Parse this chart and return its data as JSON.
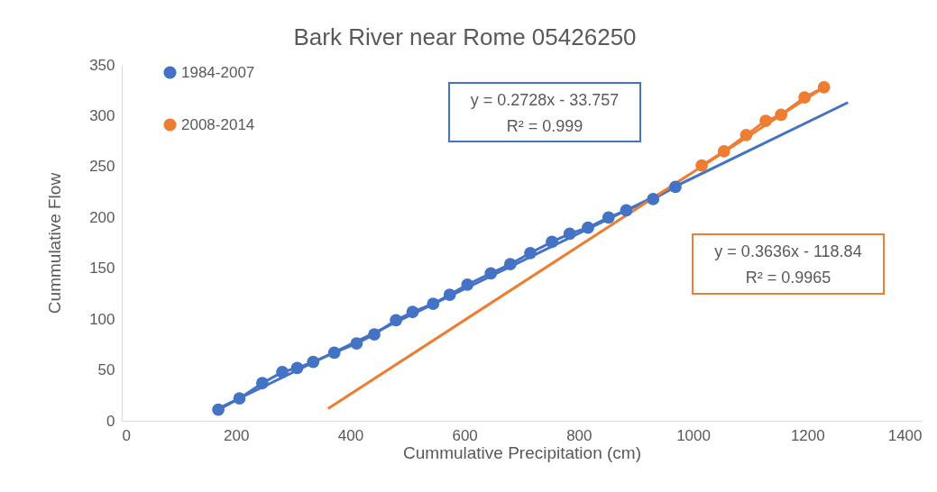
{
  "chart_data": {
    "type": "line",
    "title": "Bark River near Rome 05426250",
    "xlabel": "Cummulative Precipitation (cm)",
    "ylabel": "Cummulative Flow",
    "xlim": [
      0,
      1400
    ],
    "xticks": [
      0,
      200,
      400,
      600,
      800,
      1000,
      1200,
      1400
    ],
    "ylim": [
      0,
      350
    ],
    "yticks": [
      0,
      50,
      100,
      150,
      200,
      250,
      300,
      350
    ],
    "grid": false,
    "legend": "top left",
    "marker": "circle",
    "line_style": "solid",
    "series": [
      {
        "name": "1984-2007",
        "color": "#4472c4",
        "x": [
          169,
          206,
          246,
          281,
          307,
          335,
          372,
          411,
          442,
          480,
          509,
          545,
          574,
          605,
          646,
          680,
          715,
          753,
          784,
          816,
          852,
          883,
          930,
          969
        ],
        "values": [
          11,
          22,
          37,
          48,
          52,
          58,
          67,
          76,
          85,
          99,
          107,
          115,
          124,
          134,
          145,
          154,
          165,
          176,
          184,
          190,
          200,
          207,
          218,
          230
        ]
      },
      {
        "name": "2008-2014",
        "color": "#ed7d31",
        "x": [
          1015,
          1054,
          1093,
          1127,
          1154,
          1195,
          1229
        ],
        "values": [
          251,
          265,
          281,
          295,
          301,
          318,
          328
        ]
      },
      {
        "type": "line",
        "marker": "none",
        "color": "#4472c4",
        "x": [
          169,
          1271
        ],
        "values": [
          12,
          313
        ]
      },
      {
        "type": "line",
        "marker": "none",
        "color": "#ed7d31",
        "x": [
          361,
          1229
        ],
        "values": [
          12,
          328
        ]
      }
    ],
    "annotations": [
      "y = 0.2728x - 33.757",
      "R² = 0.999",
      "y = 0.3636x - 118.84",
      "R² = 0.9965"
    ]
  }
}
